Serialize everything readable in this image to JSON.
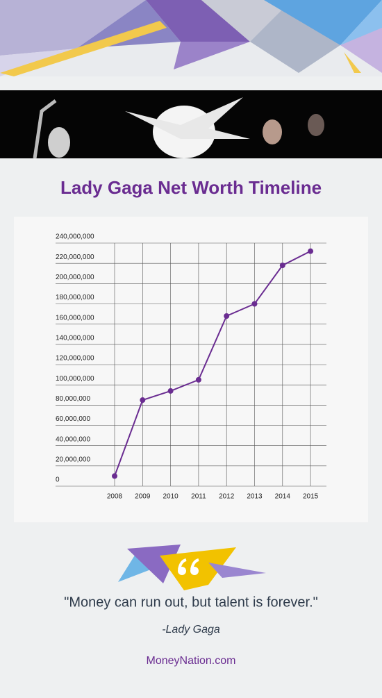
{
  "chart_data": {
    "type": "line",
    "title": "Lady Gaga Net Worth Timeline",
    "categories": [
      "2008",
      "2009",
      "2010",
      "2011",
      "2012",
      "2013",
      "2014",
      "2015"
    ],
    "series": [
      {
        "name": "Net Worth",
        "color": "#6a2c91",
        "values": [
          10000000,
          85000000,
          94000000,
          105000000,
          168000000,
          180000000,
          218000000,
          232000000
        ]
      }
    ],
    "ylim": [
      0,
      240000000
    ],
    "yticks": [
      0,
      {
        "value": 20000000,
        "label": "20,000,000"
      },
      {
        "value": 40000000,
        "label": "40,000,000"
      },
      {
        "value": 60000000,
        "label": "60,000,000"
      },
      {
        "value": 80000000,
        "label": "80,000,000"
      },
      {
        "value": 100000000,
        "label": "100,000,000"
      },
      {
        "value": 120000000,
        "label": "120,000,000"
      },
      {
        "value": 140000000,
        "label": "140,000,000"
      },
      {
        "value": 160000000,
        "label": "160,000,000"
      },
      {
        "value": 180000000,
        "label": "180,000,000"
      },
      {
        "value": 200000000,
        "label": "200,000,000"
      },
      {
        "value": 220000000,
        "label": "220,000,000"
      },
      {
        "value": 240000000,
        "label": "240,000,000"
      }
    ],
    "grid": true
  },
  "quote": "\"Money can run out, but talent is forever.\"",
  "author": "-Lady Gaga",
  "footer": "MoneyNation.com"
}
